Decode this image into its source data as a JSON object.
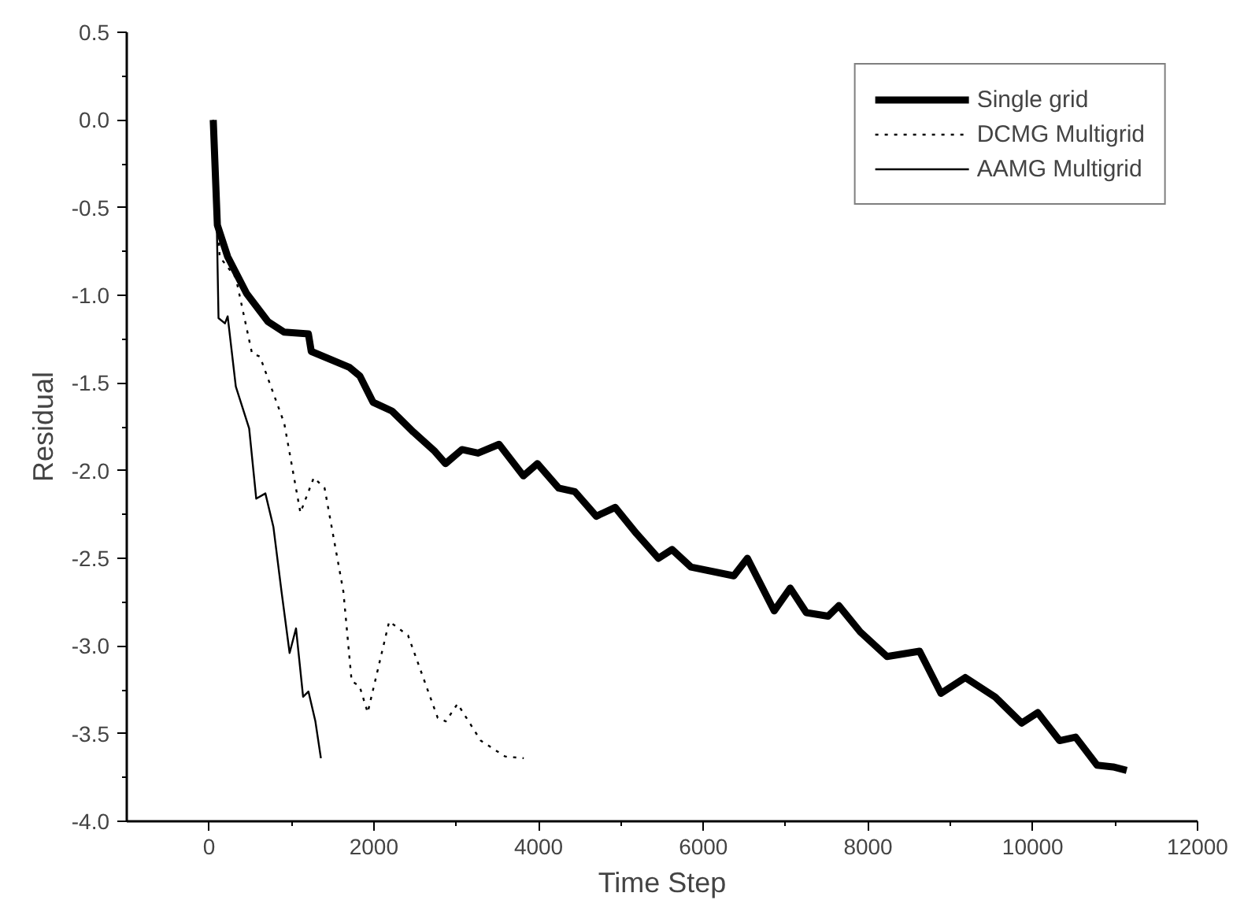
{
  "chart_data": {
    "type": "line",
    "xlabel": "Time Step",
    "ylabel": "Residual",
    "xlim": [
      -1000,
      12000
    ],
    "xticks": [
      0,
      2000,
      4000,
      6000,
      8000,
      10000,
      12000
    ],
    "ylim": [
      -4.0,
      0.5
    ],
    "yticks": [
      {
        "value": -4.0,
        "label": "-4.0"
      },
      {
        "value": -3.5,
        "label": "-3.5"
      },
      {
        "value": -3.0,
        "label": "-3.0"
      },
      {
        "value": -2.5,
        "label": "-2.5"
      },
      {
        "value": -2.0,
        "label": "-2.0"
      },
      {
        "value": -1.5,
        "label": "-1.5"
      },
      {
        "value": -1.0,
        "label": "-1.0"
      },
      {
        "value": -0.5,
        "label": "-0.5"
      },
      {
        "value": 0.0,
        "label": "0.0"
      },
      {
        "value": 0.5,
        "label": "0.5"
      }
    ],
    "grid": false,
    "legend": "top right",
    "marker": "none",
    "series": [
      {
        "name": "Single grid",
        "color": "#000000",
        "line_style": "solid",
        "x": [
          50,
          100,
          225,
          455,
          715,
          910,
          1205,
          1240,
          1700,
          1830,
          1990,
          2220,
          2480,
          2740,
          2870,
          3070,
          3265,
          3520,
          3815,
          3985,
          4245,
          4440,
          4700,
          4930,
          5190,
          5455,
          5620,
          5850,
          6370,
          6535,
          6860,
          7055,
          7250,
          7515,
          7645,
          7905,
          8230,
          8625,
          8885,
          9180,
          9540,
          9865,
          10060,
          10325,
          10520,
          10780,
          10975,
          11140
        ],
        "values": [
          0.0,
          -0.6,
          -0.78,
          -0.99,
          -1.15,
          -1.21,
          -1.22,
          -1.32,
          -1.41,
          -1.46,
          -1.61,
          -1.66,
          -1.78,
          -1.89,
          -1.96,
          -1.88,
          -1.9,
          -1.85,
          -2.03,
          -1.96,
          -2.1,
          -2.12,
          -2.26,
          -2.21,
          -2.36,
          -2.5,
          -2.45,
          -2.55,
          -2.6,
          -2.5,
          -2.8,
          -2.67,
          -2.81,
          -2.83,
          -2.77,
          -2.92,
          -3.06,
          -3.03,
          -3.27,
          -3.18,
          -3.29,
          -3.44,
          -3.38,
          -3.54,
          -3.52,
          -3.68,
          -3.69,
          -3.71
        ]
      },
      {
        "name": "DCMG Multigrid",
        "color": "#000000",
        "line_style": "dotted",
        "x": [
          50,
          127,
          324,
          520,
          618,
          912,
          1108,
          1271,
          1402,
          1630,
          1730,
          1827,
          1925,
          2186,
          2415,
          2775,
          2873,
          3016,
          3298,
          3592,
          3820
        ],
        "values": [
          0.0,
          -0.78,
          -0.9,
          -1.33,
          -1.35,
          -1.73,
          -2.24,
          -2.04,
          -2.1,
          -2.69,
          -3.2,
          -3.23,
          -3.38,
          -2.86,
          -2.94,
          -3.41,
          -3.43,
          -3.33,
          -3.54,
          -3.63,
          -3.64
        ]
      },
      {
        "name": "AAMG Multigrid",
        "color": "#000000",
        "line_style": "solid",
        "x": [
          50,
          94,
          114,
          192,
          225,
          324,
          486,
          572,
          683,
          780,
          879,
          977,
          1055,
          1141,
          1206,
          1290,
          1357
        ],
        "values": [
          0.0,
          -0.62,
          -1.13,
          -1.16,
          -1.12,
          -1.52,
          -1.76,
          -2.16,
          -2.13,
          -2.32,
          -2.69,
          -3.04,
          -2.9,
          -3.29,
          -3.26,
          -3.43,
          -3.64
        ]
      }
    ]
  }
}
